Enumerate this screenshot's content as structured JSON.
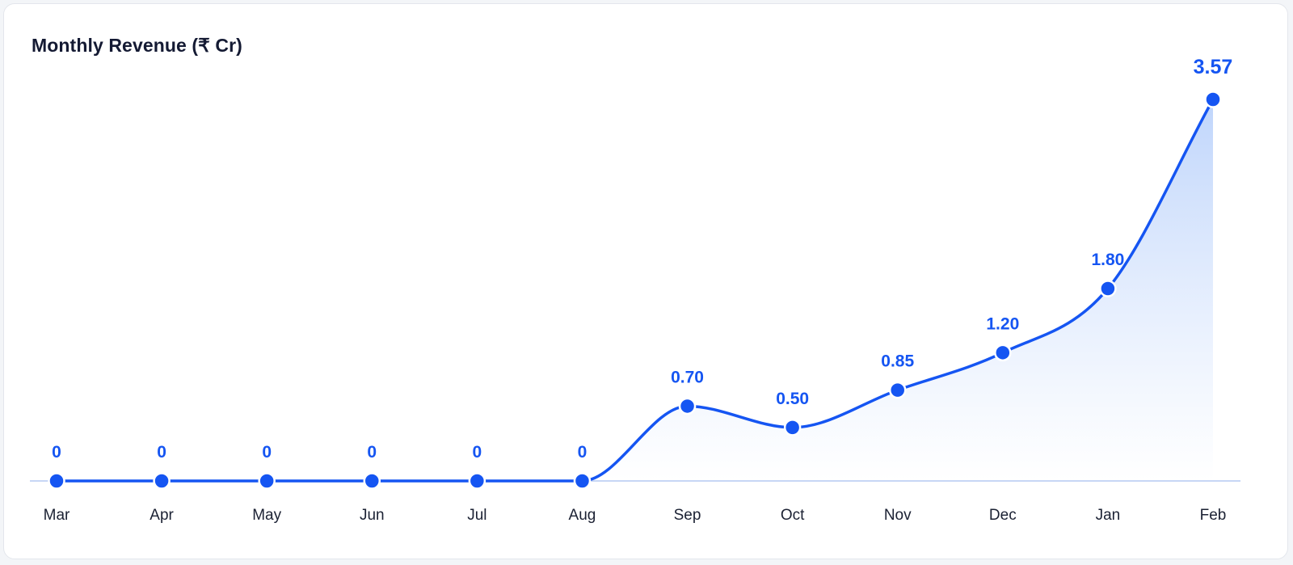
{
  "colors": {
    "line": "#1555f2",
    "area_top": "#bcd3fb",
    "area_bottom": "#ffffff",
    "baseline": "#c7d6f5",
    "title": "#141a33",
    "axis_text": "#1b2133"
  },
  "chart_data": {
    "type": "area",
    "title": "Monthly Revenue (₹ Cr)",
    "xlabel": "",
    "ylabel": "",
    "categories": [
      "Mar",
      "Apr",
      "May",
      "Jun",
      "Jul",
      "Aug",
      "Sep",
      "Oct",
      "Nov",
      "Dec",
      "Jan",
      "Feb"
    ],
    "values": [
      0,
      0,
      0,
      0,
      0,
      0,
      0.7,
      0.5,
      0.85,
      1.2,
      1.8,
      3.57
    ],
    "data_labels": [
      "0",
      "0",
      "0",
      "0",
      "0",
      "0",
      "0.70",
      "0.50",
      "0.85",
      "1.20",
      "1.80",
      "3.57"
    ],
    "ylim": [
      0,
      3.57
    ],
    "grid": false,
    "legend": "none"
  }
}
